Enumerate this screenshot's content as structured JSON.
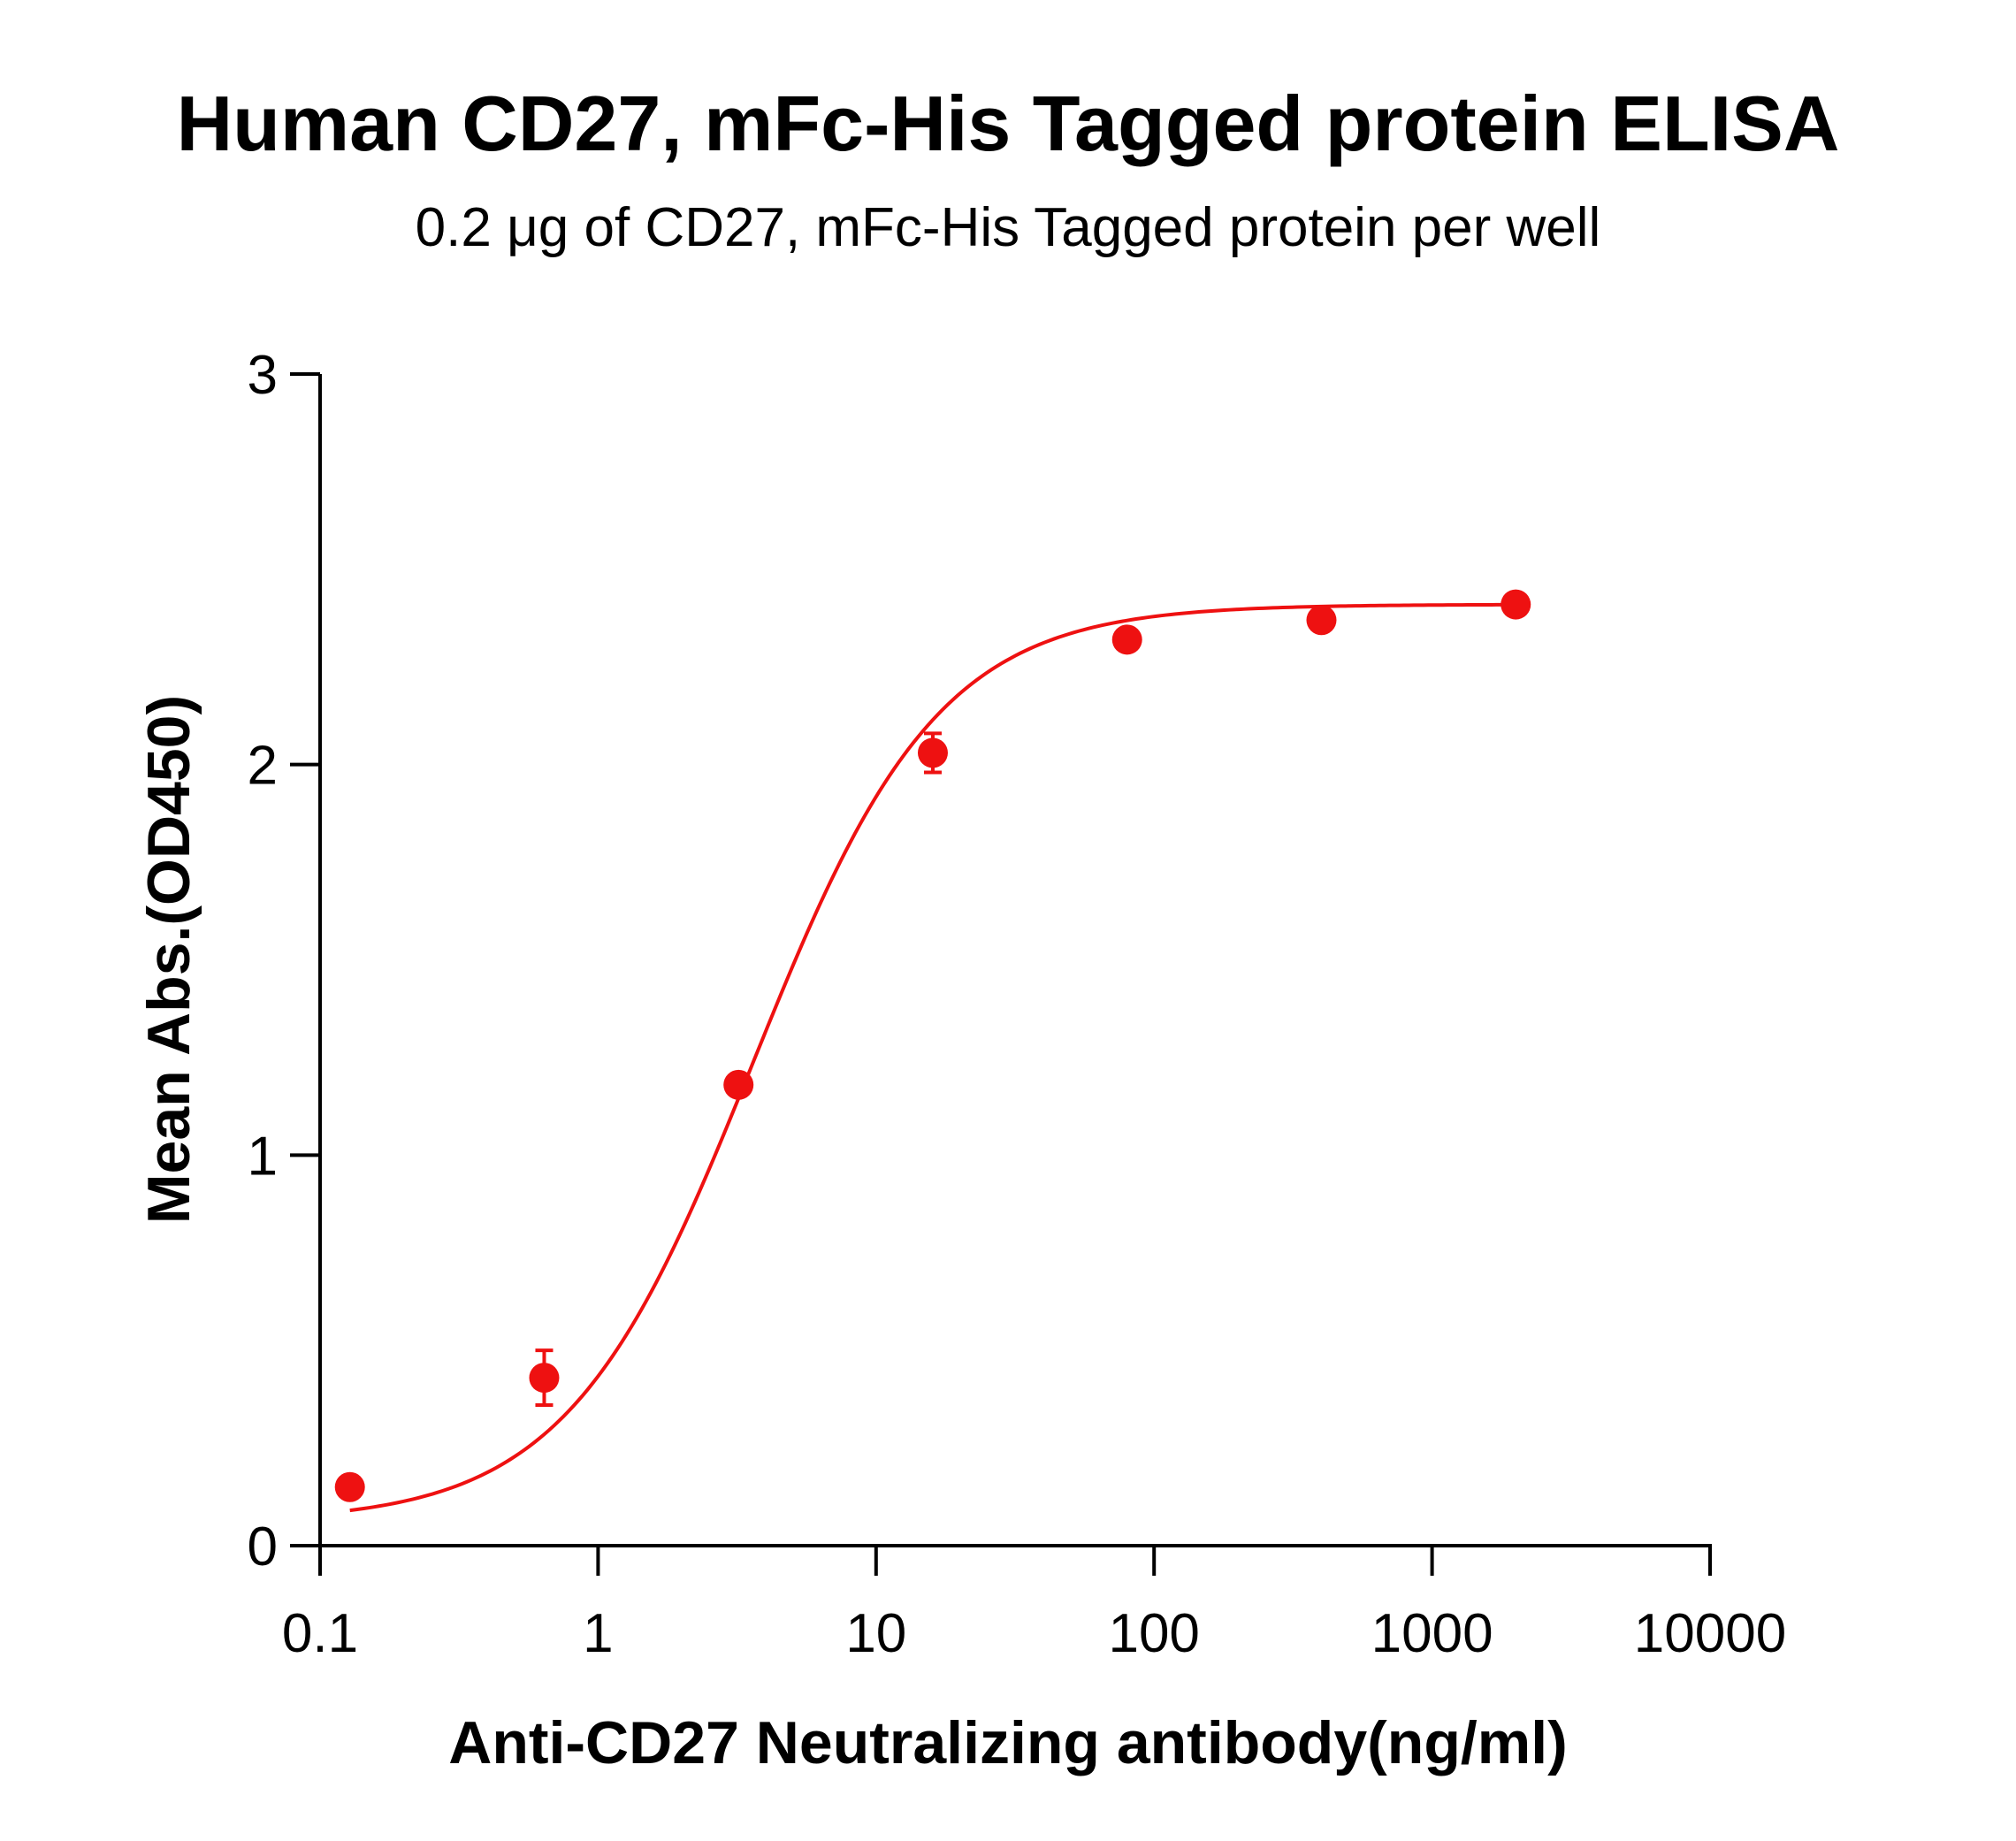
{
  "chart_data": {
    "type": "scatter",
    "title": "Human CD27, mFc-His Tagged protein ELISA",
    "subtitle": "0.2 μg of CD27, mFc-His Tagged protein per well",
    "xlabel": "Anti-CD27 Neutralizing antibody(ng/ml)",
    "ylabel": "Mean Abs.(OD450)",
    "x_scale": "log",
    "xlim": [
      0.1,
      10000
    ],
    "ylim": [
      0,
      3
    ],
    "x_ticks": [
      {
        "value": 0.1,
        "label": "0.1"
      },
      {
        "value": 1,
        "label": "1"
      },
      {
        "value": 10,
        "label": "10"
      },
      {
        "value": 100,
        "label": "100"
      },
      {
        "value": 1000,
        "label": "1000"
      },
      {
        "value": 10000,
        "label": "10000"
      }
    ],
    "y_ticks": [
      {
        "value": 0,
        "label": "0"
      },
      {
        "value": 1,
        "label": "1"
      },
      {
        "value": 2,
        "label": "2"
      },
      {
        "value": 3,
        "label": "3"
      }
    ],
    "grid": false,
    "legend": "none",
    "series": [
      {
        "color": "#ee1111",
        "points": [
          {
            "x": 0.128,
            "y": 0.15,
            "err": 0.01
          },
          {
            "x": 0.64,
            "y": 0.43,
            "err": 0.07
          },
          {
            "x": 3.2,
            "y": 1.18,
            "err": 0.01
          },
          {
            "x": 16,
            "y": 2.03,
            "err": 0.05
          },
          {
            "x": 80,
            "y": 2.32,
            "err": 0.01
          },
          {
            "x": 400,
            "y": 2.37,
            "err": 0.01
          },
          {
            "x": 2000,
            "y": 2.41,
            "err": 0.01
          }
        ],
        "fit": {
          "model": "4PL",
          "bottom": 0.06,
          "top": 2.41,
          "ec50": 3.6,
          "hill": 1.3
        }
      }
    ]
  }
}
